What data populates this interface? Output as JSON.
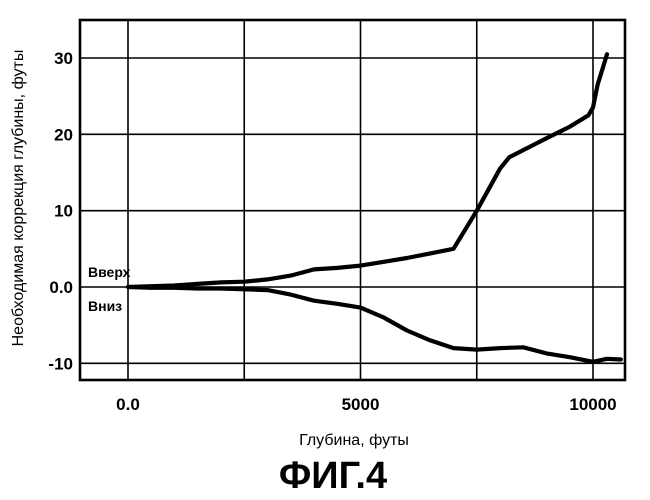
{
  "chart_data": {
    "type": "line",
    "title": "",
    "xlabel": "Глубина, футы",
    "ylabel": "Необходимая коррекция глубины, футы",
    "xlim": [
      -2000,
      11300
    ],
    "ylim": [
      -12,
      33
    ],
    "x_ticks": [
      0,
      5000,
      10000
    ],
    "x_tick_labels": [
      "0.0",
      "5000",
      "10000"
    ],
    "y_ticks": [
      30,
      20,
      10,
      0,
      -10
    ],
    "y_tick_labels": [
      "30",
      "20",
      "10",
      "0.0",
      "-10"
    ],
    "grid": true,
    "series": [
      {
        "name": "Вверх",
        "x": [
          0,
          500,
          1000,
          1500,
          2000,
          2500,
          3000,
          3500,
          4000,
          4500,
          5000,
          5500,
          6000,
          6500,
          7000,
          7500,
          8000,
          8200,
          9000,
          9500,
          9900,
          10000,
          10100,
          10300
        ],
        "y": [
          0,
          0.1,
          0.2,
          0.4,
          0.6,
          0.7,
          1.0,
          1.5,
          2.3,
          2.5,
          2.8,
          3.3,
          3.8,
          4.4,
          5.0,
          10.0,
          15.5,
          17.0,
          19.5,
          21.0,
          22.5,
          23.5,
          26.5,
          30.5
        ]
      },
      {
        "name": "Вниз",
        "x": [
          0,
          500,
          1000,
          1500,
          2000,
          2500,
          3000,
          3500,
          4000,
          4500,
          5000,
          5500,
          6000,
          6500,
          7000,
          7500,
          8000,
          8500,
          9000,
          9500,
          10000,
          10300,
          10600
        ],
        "y": [
          0,
          -0.1,
          -0.1,
          -0.2,
          -0.2,
          -0.3,
          -0.4,
          -1.0,
          -1.8,
          -2.2,
          -2.7,
          -4.0,
          -5.7,
          -7.0,
          -8.0,
          -8.2,
          -8.0,
          -7.9,
          -8.7,
          -9.2,
          -9.8,
          -9.4,
          -9.5
        ]
      }
    ]
  },
  "figure": {
    "caption": "ФИГ.4"
  }
}
